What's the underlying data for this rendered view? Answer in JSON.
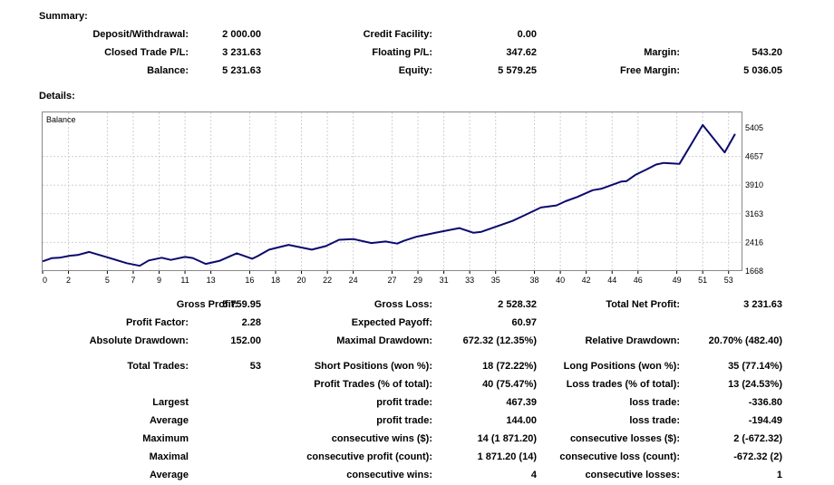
{
  "summary": {
    "heading": "Summary:",
    "deposit_label": "Deposit/Withdrawal:",
    "deposit_value": "2 000.00",
    "credit_label": "Credit Facility:",
    "credit_value": "0.00",
    "closed_label": "Closed Trade P/L:",
    "closed_value": "3 231.63",
    "floating_label": "Floating P/L:",
    "floating_value": "347.62",
    "margin_label": "Margin:",
    "margin_value": "543.20",
    "balance_label": "Balance:",
    "balance_value": "5 231.63",
    "equity_label": "Equity:",
    "equity_value": "5 579.25",
    "free_margin_label": "Free Margin:",
    "free_margin_value": "5 036.05"
  },
  "details": {
    "heading": "Details:"
  },
  "chart_data": {
    "type": "line",
    "title": "Balance",
    "x_ticks": [
      "0",
      "2",
      "5",
      "7",
      "9",
      "11",
      "13",
      "16",
      "18",
      "20",
      "22",
      "24",
      "27",
      "29",
      "31",
      "33",
      "35",
      "38",
      "40",
      "42",
      "44",
      "46",
      "49",
      "51",
      "53"
    ],
    "y_ticks": [
      "5405",
      "4657",
      "3910",
      "3163",
      "2416",
      "1668"
    ],
    "ylim": [
      1668,
      5405
    ],
    "xlim": [
      0,
      54
    ],
    "grid": true,
    "series": [
      {
        "x": [
          0,
          0.7,
          1.3,
          2.1,
          2.7,
          3.6,
          4.9,
          6.5,
          7.5,
          8.2,
          9.2,
          9.9,
          11.0,
          11.6,
          12.6,
          13.7,
          15.0,
          16.2,
          16.6,
          17.5,
          19.0,
          20.8,
          21.9,
          22.9,
          24.0,
          25.4,
          26.5,
          27.4,
          27.9,
          28.9,
          30.4,
          32.2,
          33.3,
          33.9,
          36.3,
          37.1,
          38.5,
          39.7,
          40.4,
          41.3,
          42.5,
          43.2,
          44.7,
          45.1,
          45.8,
          46.6,
          47.4,
          48.0,
          49.2,
          51.0,
          52.7,
          53.5
        ],
        "y": [
          1921,
          2004,
          2016,
          2067,
          2086,
          2166,
          2037,
          1874,
          1804,
          1944,
          2016,
          1960,
          2037,
          2009,
          1854,
          1938,
          2131,
          1989,
          2057,
          2227,
          2351,
          2227,
          2321,
          2484,
          2502,
          2400,
          2440,
          2384,
          2456,
          2564,
          2670,
          2790,
          2665,
          2693,
          2977,
          3102,
          3325,
          3380,
          3490,
          3600,
          3777,
          3817,
          4003,
          4013,
          4178,
          4308,
          4446,
          4489,
          4464,
          5478,
          4765,
          5246
        ]
      }
    ]
  },
  "stats": {
    "gross_profit_label": "Gross Profit:",
    "gross_profit_value": "5 759.95",
    "gross_loss_label": "Gross Loss:",
    "gross_loss_value": "2 528.32",
    "total_net_label": "Total Net Profit:",
    "total_net_value": "3 231.63",
    "profit_factor_label": "Profit Factor:",
    "profit_factor_value": "2.28",
    "expected_payoff_label": "Expected Payoff:",
    "expected_payoff_value": "60.97",
    "abs_dd_label": "Absolute Drawdown:",
    "abs_dd_value": "152.00",
    "max_dd_label": "Maximal Drawdown:",
    "max_dd_value": "672.32 (12.35%)",
    "rel_dd_label": "Relative Drawdown:",
    "rel_dd_value": "20.70% (482.40)",
    "total_trades_label": "Total Trades:",
    "total_trades_value": "53",
    "short_label": "Short Positions (won %):",
    "short_value": "18 (72.22%)",
    "long_label": "Long Positions (won %):",
    "long_value": "35 (77.14%)",
    "profit_trades_label": "Profit Trades (% of total):",
    "profit_trades_value": "40 (75.47%)",
    "loss_trades_label": "Loss trades (% of total):",
    "loss_trades_value": "13 (24.53%)",
    "largest_label": "Largest",
    "largest_profit_label": "profit trade:",
    "largest_profit_value": "467.39",
    "largest_loss_label": "loss trade:",
    "largest_loss_value": "-336.80",
    "average_label": "Average",
    "average_profit_label": "profit trade:",
    "average_profit_value": "144.00",
    "average_loss_label": "loss trade:",
    "average_loss_value": "-194.49",
    "maximum_label": "Maximum",
    "max_wins_label": "consecutive wins ($):",
    "max_wins_value": "14 (1 871.20)",
    "max_losses_label": "consecutive losses ($):",
    "max_losses_value": "2 (-672.32)",
    "maximal_label": "Maximal",
    "maximal_profit_label": "consecutive profit (count):",
    "maximal_profit_value": "1 871.20 (14)",
    "maximal_loss_label": "consecutive loss (count):",
    "maximal_loss_value": "-672.32 (2)",
    "average2_label": "Average",
    "avg_wins_label": "consecutive wins:",
    "avg_wins_value": "4",
    "avg_losses_label": "consecutive losses:",
    "avg_losses_value": "1"
  }
}
